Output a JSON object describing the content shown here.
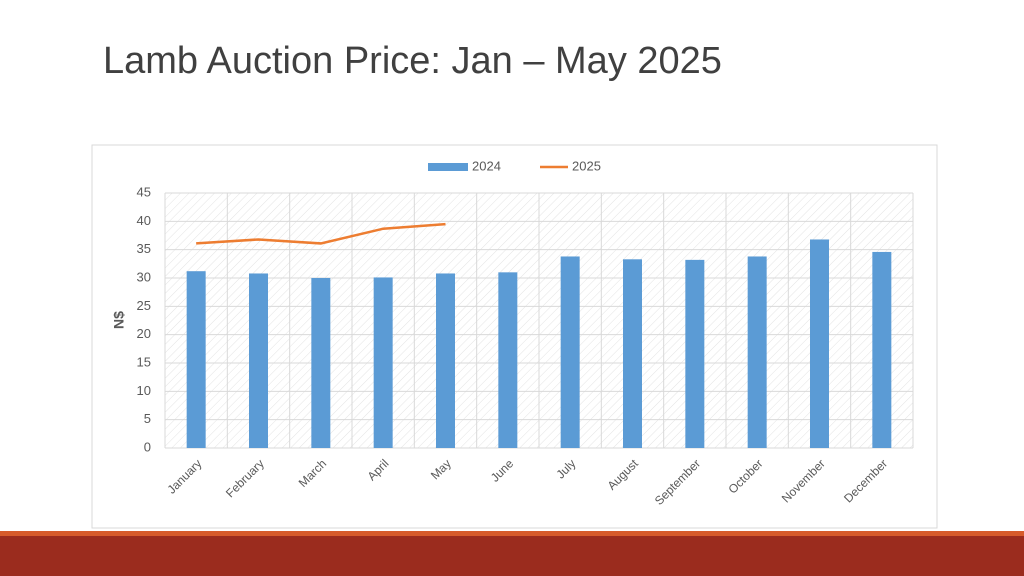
{
  "chart_data": {
    "type": "bar_line",
    "title": "Lamb Auction Price: Jan – May 2025",
    "ylabel": "N$",
    "categories": [
      "January",
      "February",
      "March",
      "April",
      "May",
      "June",
      "July",
      "August",
      "September",
      "October",
      "November",
      "December"
    ],
    "series": [
      {
        "name": "2024",
        "type": "bar",
        "color": "#5b9bd5",
        "values": [
          31.2,
          30.8,
          30.0,
          30.1,
          30.8,
          31.0,
          33.8,
          33.3,
          33.2,
          33.8,
          36.8,
          34.6
        ]
      },
      {
        "name": "2025",
        "type": "line",
        "color": "#ed7d31",
        "values": [
          36.1,
          36.8,
          36.1,
          38.7,
          39.5,
          null,
          null,
          null,
          null,
          null,
          null,
          null
        ]
      }
    ],
    "ylim": [
      0,
      45
    ],
    "yticks": [
      0,
      5,
      10,
      15,
      20,
      25,
      30,
      35,
      40,
      45
    ],
    "grid": true,
    "legend": "top"
  }
}
